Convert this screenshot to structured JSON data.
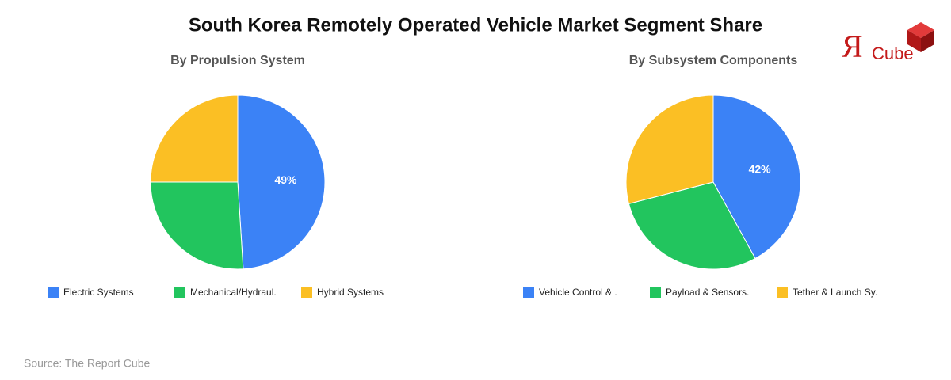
{
  "title": "South Korea Remotely Operated Vehicle Market Segment Share",
  "logo": {
    "mark": "Я",
    "text": "Cube"
  },
  "source": "Source: The Report Cube",
  "chart_data": [
    {
      "type": "pie",
      "title": "By Propulsion System",
      "categories": [
        "Electric Systems",
        "Mechanical/Hydraul.",
        "Hybrid Systems"
      ],
      "values": [
        49,
        26,
        25
      ],
      "value_labels": [
        "49%",
        null,
        null
      ],
      "colors": [
        "#3b82f6",
        "#22c55e",
        "#fbbf24"
      ]
    },
    {
      "type": "pie",
      "title": "By Subsystem Components",
      "categories": [
        "Vehicle Control & .",
        "Payload & Sensors.",
        "Tether & Launch Sy."
      ],
      "values": [
        42,
        29,
        29
      ],
      "value_labels": [
        "42%",
        null,
        null
      ],
      "colors": [
        "#3b82f6",
        "#22c55e",
        "#fbbf24"
      ]
    }
  ]
}
